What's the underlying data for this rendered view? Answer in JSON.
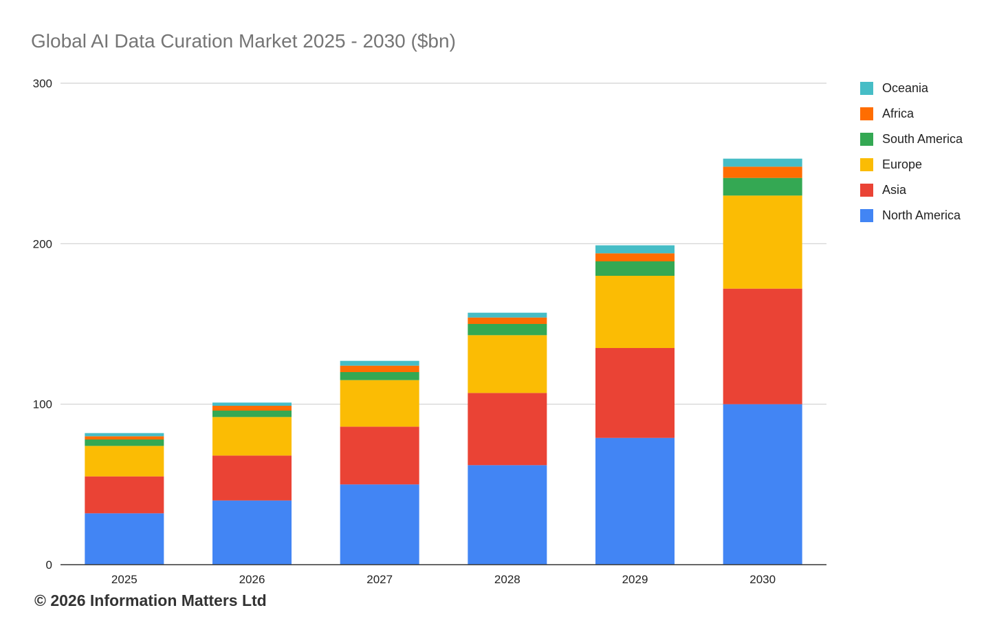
{
  "chart_data": {
    "type": "bar",
    "stacked": true,
    "title": "Global AI Data Curation Market 2025 - 2030 ($bn)",
    "xlabel": "",
    "ylabel": "",
    "ylim": [
      0,
      300
    ],
    "yticks": [
      "0",
      "100",
      "200",
      "300"
    ],
    "categories": [
      "2025",
      "2026",
      "2027",
      "2028",
      "2029",
      "2030"
    ],
    "grid": true,
    "legend_position": "right",
    "series": [
      {
        "name": "North America",
        "color": "#4285F4",
        "values": [
          32,
          40,
          50,
          62,
          79,
          100
        ]
      },
      {
        "name": "Asia",
        "color": "#EA4335",
        "values": [
          23,
          28,
          36,
          45,
          56,
          72
        ]
      },
      {
        "name": "Europe",
        "color": "#FBBC04",
        "values": [
          19,
          24,
          29,
          36,
          45,
          58
        ]
      },
      {
        "name": "South America",
        "color": "#34A853",
        "values": [
          4,
          4,
          5,
          7,
          9,
          11
        ]
      },
      {
        "name": "Africa",
        "color": "#FF6D01",
        "values": [
          2,
          3,
          4,
          4,
          5,
          7
        ]
      },
      {
        "name": "Oceania",
        "color": "#46BDC6",
        "values": [
          2,
          2,
          3,
          3,
          5,
          5
        ]
      }
    ]
  },
  "copyright": "© 2026 Information Matters Ltd"
}
